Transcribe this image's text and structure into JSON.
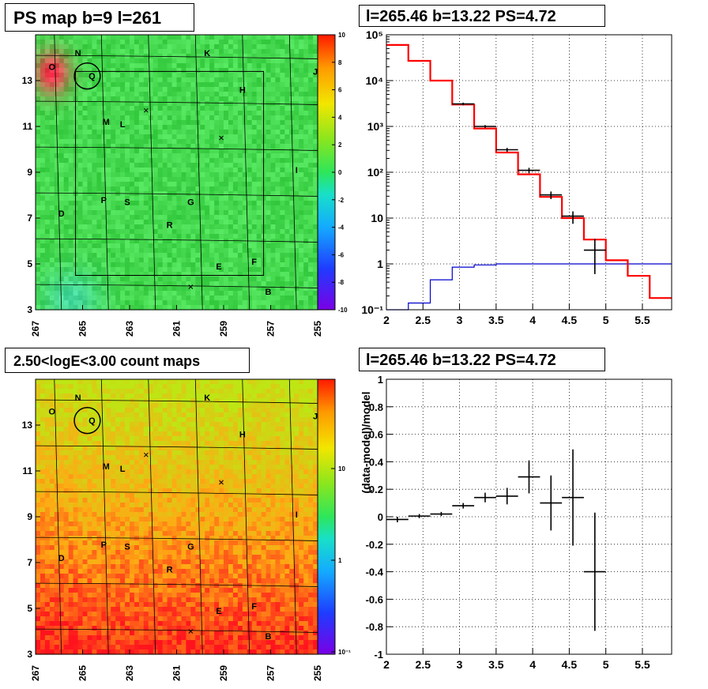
{
  "titles": {
    "psmap": "PS map b=9 l=261",
    "spectrum": "l=265.46 b=13.22 PS=4.72",
    "countmap": "2.50<logE<3.00 count maps",
    "residual": "l=265.46 b=13.22 PS=4.72"
  },
  "sources": [
    {
      "label": "N",
      "l": 265.2,
      "b": 14.2
    },
    {
      "label": "K",
      "l": 259.7,
      "b": 14.2
    },
    {
      "label": "J",
      "l": 255.1,
      "b": 13.4
    },
    {
      "label": "O",
      "l": 266.3,
      "b": 13.6
    },
    {
      "label": "Q",
      "l": 264.6,
      "b": 13.2
    },
    {
      "label": "H",
      "l": 258.2,
      "b": 12.6
    },
    {
      "label": "M",
      "l": 264.0,
      "b": 11.2
    },
    {
      "label": "L",
      "l": 263.3,
      "b": 11.1
    },
    {
      "label": "I",
      "l": 255.9,
      "b": 9.1
    },
    {
      "label": "P",
      "l": 264.1,
      "b": 7.8
    },
    {
      "label": "S",
      "l": 263.1,
      "b": 7.7
    },
    {
      "label": "G",
      "l": 260.4,
      "b": 7.7
    },
    {
      "label": "D",
      "l": 265.9,
      "b": 7.2
    },
    {
      "label": "R",
      "l": 261.3,
      "b": 6.7
    },
    {
      "label": "E",
      "l": 259.2,
      "b": 4.9
    },
    {
      "label": "F",
      "l": 257.7,
      "b": 5.1
    },
    {
      "label": "B",
      "l": 257.1,
      "b": 3.8
    }
  ],
  "crosses": [
    {
      "l": 262.3,
      "b": 11.7
    },
    {
      "l": 259.1,
      "b": 10.5
    },
    {
      "l": 260.4,
      "b": 4.0
    }
  ],
  "circle": {
    "l": 264.8,
    "b": 13.2,
    "r_deg": 0.55
  },
  "map_axes": {
    "xlim": [
      267,
      255
    ],
    "ylim": [
      3,
      15
    ],
    "xticks": [
      267,
      265,
      263,
      261,
      259,
      257,
      255
    ],
    "yticks": [
      3,
      5,
      7,
      9,
      11,
      13
    ]
  },
  "colorbars": {
    "psmap": {
      "ticks": [
        10,
        8,
        6,
        4,
        2,
        0,
        -2,
        -4,
        -6,
        -8,
        -10
      ]
    },
    "countmap": {
      "ticks": [
        "10",
        "1",
        "10⁻¹"
      ]
    }
  },
  "chart_data": [
    {
      "type": "heatmap",
      "title": "PS map b=9 l=261",
      "xlim": [
        267,
        255
      ],
      "ylim": [
        3,
        15
      ],
      "zlim": [
        -10,
        10
      ],
      "colors": {
        "background": "#33e64d",
        "hotspot": "#e6261a",
        "cool": "#3de0a0"
      }
    },
    {
      "type": "line",
      "title": "l=265.46 b=13.22 PS=4.72",
      "log_y": true,
      "xlim": [
        2,
        5.9
      ],
      "ylim": [
        0.1,
        100000
      ],
      "xticks": [
        "2",
        "2.5",
        "3",
        "3.5",
        "4",
        "4.5",
        "5",
        "5.5"
      ],
      "yticks": [
        "10⁻¹",
        "1",
        "10",
        "10²",
        "10³",
        "10⁴",
        "10⁵"
      ],
      "model_bins": [
        2.0,
        2.3,
        2.6,
        2.9,
        3.2,
        3.5,
        3.8,
        4.1,
        4.4,
        4.7,
        5.0,
        5.3,
        5.6,
        5.9
      ],
      "model_values": [
        60000,
        27000,
        10000,
        3000,
        900,
        270,
        90,
        29,
        10,
        3.4,
        1.2,
        0.55,
        0.18
      ],
      "background_values": [
        0.08,
        0.14,
        0.45,
        0.85,
        0.95,
        1.0,
        1.0,
        1.0,
        1.0,
        1.0,
        1.0,
        1.0,
        1.0
      ],
      "data_points": [
        {
          "x": 3.05,
          "y": 3100,
          "xerr": 0.15,
          "ylo": 2900,
          "yhi": 3300
        },
        {
          "x": 3.35,
          "y": 1000,
          "xerr": 0.15,
          "ylo": 930,
          "yhi": 1070
        },
        {
          "x": 3.65,
          "y": 310,
          "xerr": 0.15,
          "ylo": 280,
          "yhi": 340
        },
        {
          "x": 3.95,
          "y": 110,
          "xerr": 0.15,
          "ylo": 95,
          "yhi": 125
        },
        {
          "x": 4.25,
          "y": 32,
          "xerr": 0.15,
          "ylo": 26,
          "yhi": 38
        },
        {
          "x": 4.55,
          "y": 11,
          "xerr": 0.15,
          "ylo": 7.5,
          "yhi": 14
        },
        {
          "x": 4.85,
          "y": 2,
          "xerr": 0.15,
          "ylo": 0.6,
          "yhi": 3.5
        }
      ],
      "colors": {
        "model": "#ff0000",
        "background": "#0000cc",
        "data": "#000000"
      }
    },
    {
      "type": "heatmap",
      "title": "2.50<logE<3.00 count maps",
      "xlim": [
        267,
        255
      ],
      "ylim": [
        3,
        15
      ],
      "log_z": true,
      "colors": {
        "low": "#c8e600",
        "mid": "#ff9900",
        "high": "#ee1111"
      }
    },
    {
      "type": "scatter",
      "title": "l=265.46 b=13.22 PS=4.72",
      "ylabel": "(data-model)/model",
      "xlim": [
        2,
        5.9
      ],
      "ylim": [
        -1,
        1
      ],
      "xticks": [
        "2",
        "2.5",
        "3",
        "3.5",
        "4",
        "4.5",
        "5",
        "5.5"
      ],
      "yticks": [
        "-1",
        "-0.8",
        "-0.6",
        "-0.4",
        "-0.2",
        "0",
        "0.2",
        "0.4",
        "0.6",
        "0.8",
        "1"
      ],
      "points": [
        {
          "x": 2.15,
          "y": -0.02,
          "xerr": 0.15,
          "yerr": 0.02
        },
        {
          "x": 2.45,
          "y": 0.005,
          "xerr": 0.15,
          "yerr": 0.015
        },
        {
          "x": 2.75,
          "y": 0.02,
          "xerr": 0.15,
          "yerr": 0.015
        },
        {
          "x": 3.05,
          "y": 0.08,
          "xerr": 0.15,
          "yerr": 0.02
        },
        {
          "x": 3.35,
          "y": 0.14,
          "xerr": 0.15,
          "yerr": 0.035
        },
        {
          "x": 3.65,
          "y": 0.15,
          "xerr": 0.15,
          "yerr": 0.06
        },
        {
          "x": 3.95,
          "y": 0.29,
          "xerr": 0.15,
          "yerr": 0.12
        },
        {
          "x": 4.25,
          "y": 0.1,
          "xerr": 0.15,
          "yerr": 0.2
        },
        {
          "x": 4.55,
          "y": 0.14,
          "xerr": 0.15,
          "yerr": 0.35
        },
        {
          "x": 4.85,
          "y": -0.4,
          "xerr": 0.15,
          "yerr": 0.43
        }
      ]
    }
  ]
}
